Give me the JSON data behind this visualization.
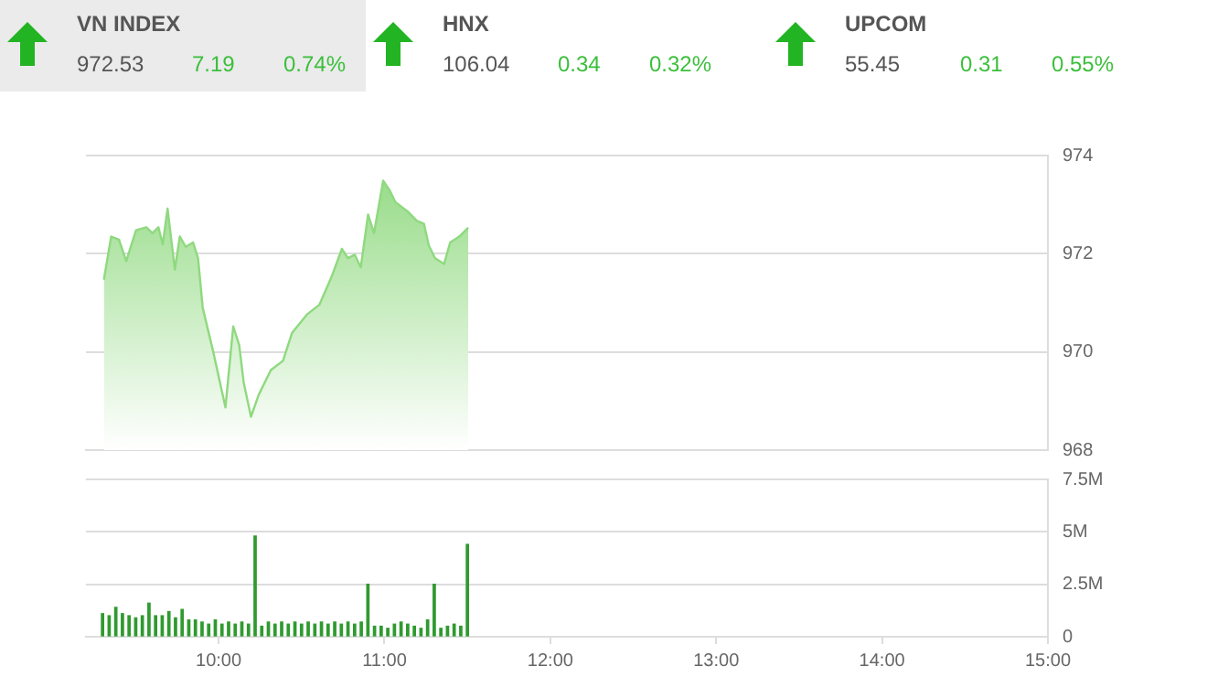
{
  "chart_data": [
    {
      "type": "other",
      "annotations": [
        "VN INDEX",
        "972.53",
        "7.19",
        "0.74%",
        "HNX",
        "106.04",
        "0.34",
        "0.32%",
        "UPCOM",
        "55.45",
        "0.31",
        "0.55%"
      ]
    },
    {
      "type": "area",
      "color": "#8fd97f",
      "tick_labels": "y",
      "grid": "y",
      "x": [
        9.308,
        9.352,
        9.399,
        9.443,
        9.502,
        9.564,
        9.601,
        9.637,
        9.663,
        9.692,
        9.736,
        9.766,
        9.802,
        9.846,
        9.876,
        9.904,
        9.967,
        10.041,
        10.088,
        10.124,
        10.151,
        10.195,
        10.242,
        10.315,
        10.388,
        10.443,
        10.535,
        10.607,
        10.681,
        10.743,
        10.78,
        10.821,
        10.857,
        10.901,
        10.937,
        10.992,
        11.03,
        11.066,
        11.14,
        11.195,
        11.238,
        11.267,
        11.305,
        11.359,
        11.396,
        11.451,
        11.505
      ],
      "values": [
        971.47,
        972.35,
        972.29,
        971.85,
        972.48,
        972.54,
        972.42,
        972.54,
        972.19,
        972.92,
        971.68,
        972.35,
        972.14,
        972.23,
        971.91,
        970.9,
        970.01,
        968.87,
        970.52,
        970.14,
        969.38,
        968.68,
        969.13,
        969.63,
        969.82,
        970.39,
        970.77,
        970.96,
        971.53,
        972.1,
        971.91,
        971.98,
        971.72,
        972.8,
        972.42,
        973.49,
        973.3,
        973.05,
        972.86,
        972.67,
        972.61,
        972.17,
        971.91,
        971.79,
        972.23,
        972.35,
        972.53
      ],
      "xlim": [
        9.2,
        15
      ],
      "ylim": [
        968,
        974
      ],
      "yticks": [
        968,
        970,
        972,
        974
      ]
    },
    {
      "type": "bar",
      "color": "#2f9a2f",
      "grid": "y",
      "x": [
        9.3,
        9.34,
        9.38,
        9.42,
        9.46,
        9.5,
        9.54,
        9.58,
        9.62,
        9.66,
        9.7,
        9.74,
        9.78,
        9.82,
        9.86,
        9.9,
        9.94,
        9.98,
        10.02,
        10.06,
        10.1,
        10.14,
        10.18,
        10.22,
        10.26,
        10.3,
        10.34,
        10.38,
        10.42,
        10.46,
        10.5,
        10.54,
        10.58,
        10.62,
        10.66,
        10.7,
        10.74,
        10.78,
        10.82,
        10.86,
        10.9,
        10.94,
        10.98,
        11.02,
        11.06,
        11.1,
        11.14,
        11.18,
        11.22,
        11.26,
        11.3,
        11.34,
        11.38,
        11.42,
        11.46,
        11.5
      ],
      "values": [
        1.1,
        1.0,
        1.4,
        1.1,
        1.0,
        0.9,
        1.0,
        1.6,
        1.0,
        1.0,
        1.2,
        0.9,
        1.3,
        0.8,
        0.8,
        0.7,
        0.6,
        0.8,
        0.6,
        0.7,
        0.6,
        0.7,
        0.6,
        4.8,
        0.5,
        0.7,
        0.6,
        0.7,
        0.6,
        0.7,
        0.6,
        0.7,
        0.6,
        0.7,
        0.6,
        0.7,
        0.6,
        0.7,
        0.6,
        0.7,
        2.5,
        0.5,
        0.5,
        0.4,
        0.6,
        0.7,
        0.6,
        0.5,
        0.4,
        0.8,
        2.5,
        0.4,
        0.5,
        0.6,
        0.5,
        4.4
      ],
      "xlim": [
        9.2,
        15
      ],
      "xticks": [
        {
          "value": 10,
          "label": "10:00"
        },
        {
          "value": 11,
          "label": "11:00"
        },
        {
          "value": 12,
          "label": "12:00"
        },
        {
          "value": 13,
          "label": "13:00"
        },
        {
          "value": 14,
          "label": "14:00"
        },
        {
          "value": 15,
          "label": "15:00"
        }
      ],
      "ylim": [
        0,
        7.5
      ],
      "yticks": [
        0,
        {
          "value": 2.5,
          "label": "2.5M"
        },
        {
          "value": 5,
          "label": "5M"
        },
        {
          "value": 7.5,
          "label": "7.5M"
        }
      ]
    }
  ]
}
